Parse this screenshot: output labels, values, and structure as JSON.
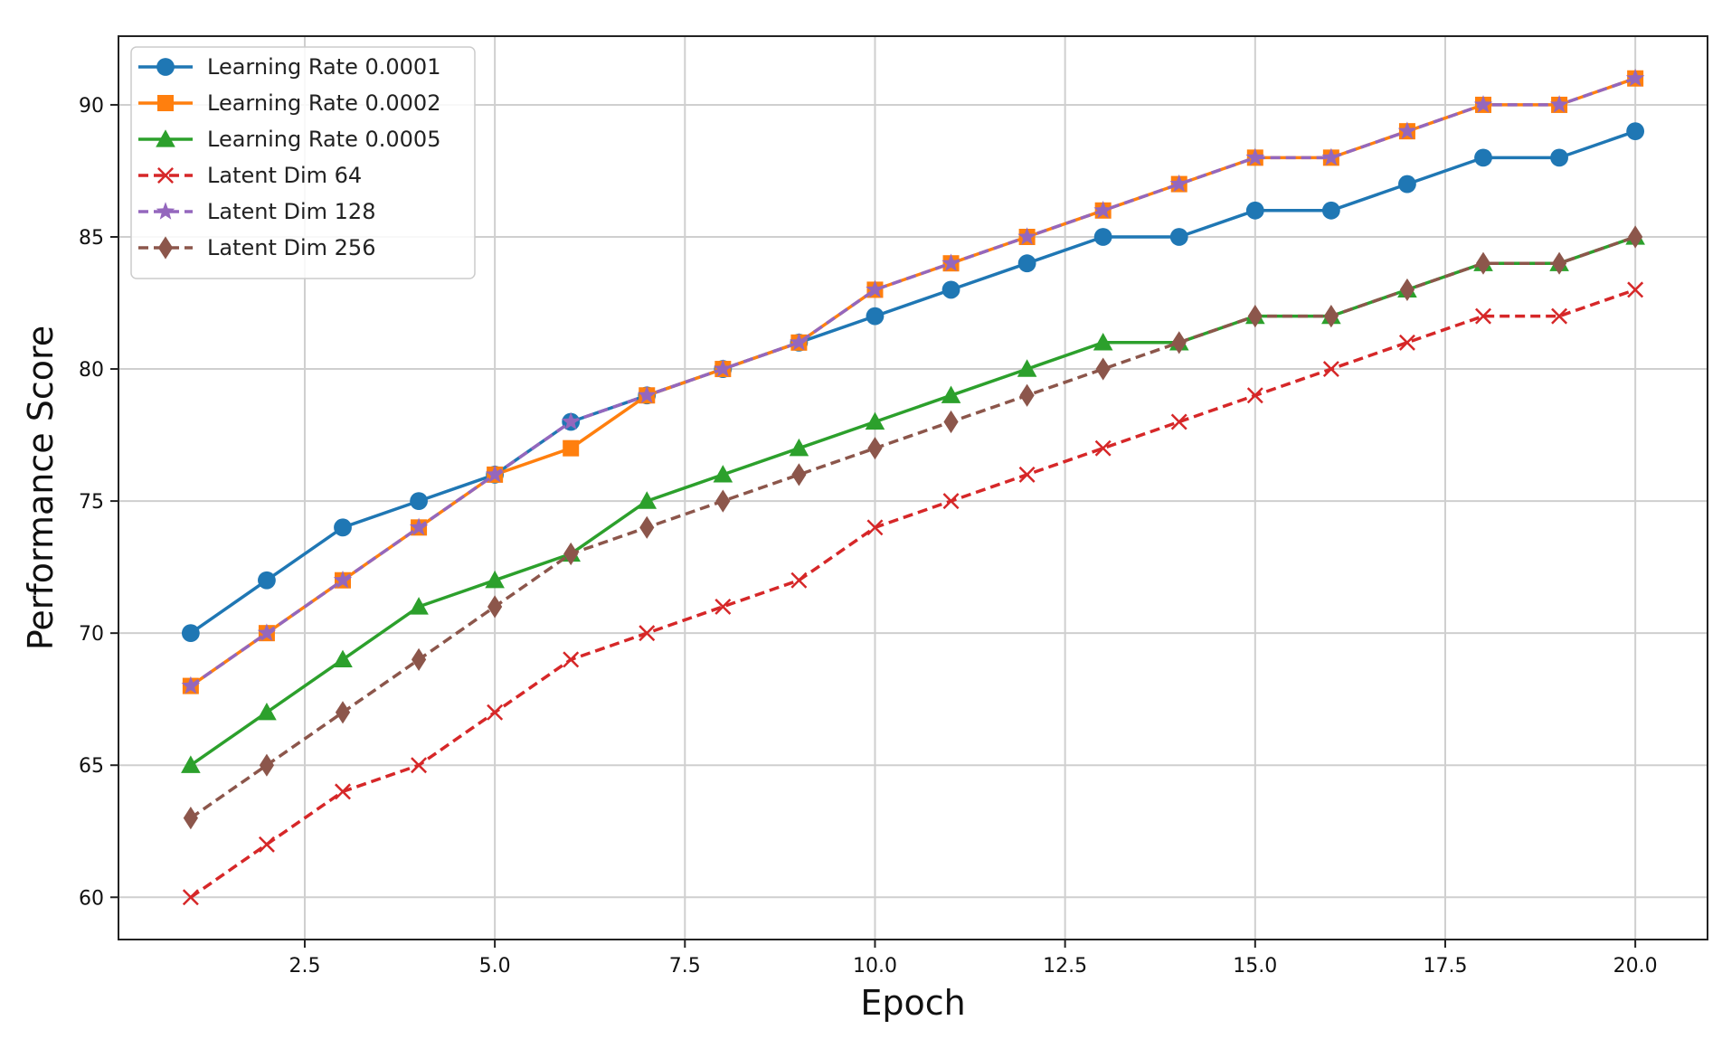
{
  "chart_data": {
    "type": "line",
    "title": "",
    "xlabel": "Epoch",
    "ylabel": "Performance Score",
    "xlim": [
      0.05,
      20.95
    ],
    "ylim": [
      58.4,
      92.6
    ],
    "xticks": [
      2.5,
      5.0,
      7.5,
      10.0,
      12.5,
      15.0,
      17.5,
      20.0
    ],
    "xtick_labels": [
      "2.5",
      "5.0",
      "7.5",
      "10.0",
      "12.5",
      "15.0",
      "17.5",
      "20.0"
    ],
    "yticks": [
      60,
      65,
      70,
      75,
      80,
      85,
      90
    ],
    "ytick_labels": [
      "60",
      "65",
      "70",
      "75",
      "80",
      "85",
      "90"
    ],
    "grid": true,
    "legend_position": "top-left",
    "x": [
      1,
      2,
      3,
      4,
      5,
      6,
      7,
      8,
      9,
      10,
      11,
      12,
      13,
      14,
      15,
      16,
      17,
      18,
      19,
      20
    ],
    "series": [
      {
        "name": "Learning Rate 0.0001",
        "color": "#1f77b4",
        "linestyle": "solid",
        "marker": "circle",
        "values": [
          70,
          72,
          74,
          75,
          76,
          78,
          79,
          80,
          81,
          82,
          83,
          84,
          85,
          85,
          86,
          86,
          87,
          88,
          88,
          89
        ]
      },
      {
        "name": "Learning Rate 0.0002",
        "color": "#ff7f0e",
        "linestyle": "solid",
        "marker": "square",
        "values": [
          68,
          70,
          72,
          74,
          76,
          77,
          79,
          80,
          81,
          83,
          84,
          85,
          86,
          87,
          88,
          88,
          89,
          90,
          90,
          91
        ]
      },
      {
        "name": "Learning Rate 0.0005",
        "color": "#2ca02c",
        "linestyle": "solid",
        "marker": "triangle",
        "values": [
          65,
          67,
          69,
          71,
          72,
          73,
          75,
          76,
          77,
          78,
          79,
          80,
          81,
          81,
          82,
          82,
          83,
          84,
          84,
          85
        ]
      },
      {
        "name": "Latent Dim 64",
        "color": "#d62728",
        "linestyle": "dashed",
        "marker": "x",
        "values": [
          60,
          62,
          64,
          65,
          67,
          69,
          70,
          71,
          72,
          74,
          75,
          76,
          77,
          78,
          79,
          80,
          81,
          82,
          82,
          83
        ]
      },
      {
        "name": "Latent Dim 128",
        "color": "#9467bd",
        "linestyle": "dashed",
        "marker": "star",
        "values": [
          68,
          70,
          72,
          74,
          76,
          78,
          79,
          80,
          81,
          83,
          84,
          85,
          86,
          87,
          88,
          88,
          89,
          90,
          90,
          91
        ]
      },
      {
        "name": "Latent Dim 256",
        "color": "#8c564b",
        "linestyle": "dashed",
        "marker": "diamond",
        "values": [
          63,
          65,
          67,
          69,
          71,
          73,
          74,
          75,
          76,
          77,
          78,
          79,
          80,
          81,
          82,
          82,
          83,
          84,
          84,
          85
        ]
      }
    ]
  }
}
